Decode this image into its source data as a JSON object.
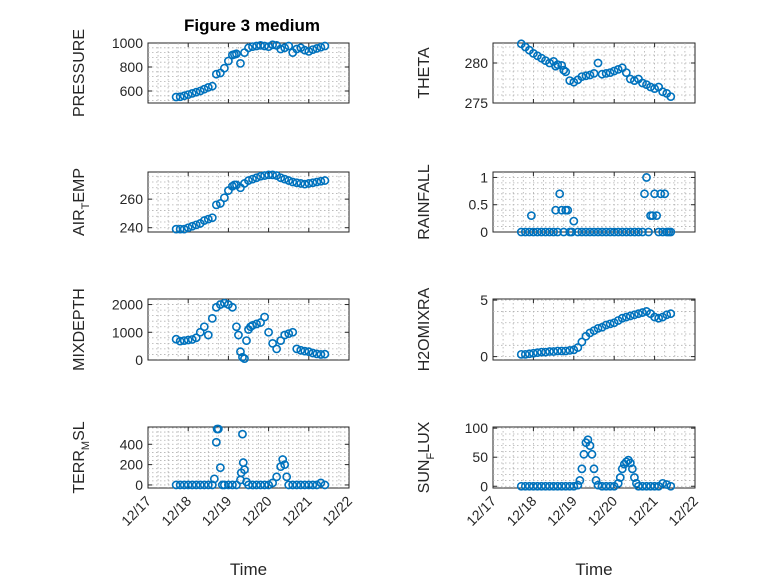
{
  "figure_title": "Figure 3 medium",
  "x_axis_label": "Time",
  "marker_color": "#0072BD",
  "time_ticks": [
    "12/17",
    "12/18",
    "12/19",
    "12/20",
    "12/21",
    "12/22"
  ],
  "chart_data": [
    {
      "type": "scatter",
      "ylabel": "PRESSURE",
      "ylim": [
        500,
        1000
      ],
      "yticks": [
        600,
        800,
        1000
      ],
      "xlim": [
        17,
        22
      ],
      "grid": true,
      "x": [
        17.7,
        17.8,
        17.9,
        18.0,
        18.1,
        18.2,
        18.3,
        18.4,
        18.5,
        18.6,
        18.7,
        18.8,
        18.9,
        19.0,
        19.1,
        19.15,
        19.2,
        19.3,
        19.4,
        19.5,
        19.6,
        19.7,
        19.8,
        19.9,
        20.0,
        20.1,
        20.2,
        20.3,
        20.4,
        20.5,
        20.6,
        20.7,
        20.8,
        20.9,
        21.0,
        21.1,
        21.2,
        21.3,
        21.4
      ],
      "y": [
        550,
        552,
        560,
        570,
        580,
        590,
        600,
        615,
        630,
        640,
        740,
        750,
        790,
        850,
        900,
        905,
        910,
        830,
        920,
        960,
        970,
        975,
        980,
        975,
        970,
        985,
        980,
        950,
        960,
        975,
        920,
        950,
        960,
        940,
        930,
        945,
        955,
        965,
        975
      ]
    },
    {
      "type": "scatter",
      "ylabel": "THETA",
      "ylim": [
        275,
        282.5
      ],
      "yticks": [
        275,
        280
      ],
      "xlim": [
        17,
        22
      ],
      "grid": true,
      "x": [
        17.7,
        17.8,
        17.9,
        18.0,
        18.1,
        18.2,
        18.3,
        18.4,
        18.5,
        18.55,
        18.6,
        18.7,
        18.75,
        18.8,
        18.9,
        19.0,
        19.1,
        19.2,
        19.3,
        19.4,
        19.5,
        19.6,
        19.7,
        19.8,
        19.9,
        20.0,
        20.1,
        20.2,
        20.3,
        20.4,
        20.5,
        20.6,
        20.7,
        20.8,
        20.9,
        21.0,
        21.1,
        21.2,
        21.3,
        21.4
      ],
      "y": [
        282.4,
        282,
        281.6,
        281.2,
        280.9,
        280.6,
        280.3,
        280,
        280.2,
        279.6,
        279.8,
        279.7,
        279.1,
        278.9,
        277.8,
        277.6,
        277.9,
        278.3,
        278.4,
        278.5,
        278.7,
        280.0,
        278.6,
        278.7,
        278.8,
        279.0,
        279.2,
        279.4,
        278.8,
        278.0,
        277.8,
        278.0,
        277.5,
        277.3,
        277.0,
        276.8,
        277.0,
        276.4,
        276.2,
        275.8
      ]
    },
    {
      "type": "scatter",
      "ylabel": "AIR_TEMP",
      "ylim": [
        237,
        279
      ],
      "yticks": [
        240,
        260
      ],
      "xlim": [
        17,
        22
      ],
      "grid": true,
      "x": [
        17.7,
        17.8,
        17.9,
        18.0,
        18.1,
        18.2,
        18.3,
        18.4,
        18.5,
        18.6,
        18.7,
        18.8,
        18.9,
        19.0,
        19.1,
        19.15,
        19.2,
        19.3,
        19.4,
        19.5,
        19.6,
        19.7,
        19.8,
        19.9,
        20.0,
        20.1,
        20.2,
        20.3,
        20.4,
        20.5,
        20.6,
        20.7,
        20.8,
        20.9,
        21.0,
        21.1,
        21.2,
        21.3,
        21.4
      ],
      "y": [
        239,
        239,
        239,
        240,
        241,
        242,
        243,
        245,
        246,
        247,
        256,
        257,
        261,
        266,
        269,
        270,
        270,
        268,
        271,
        273,
        274,
        275,
        276,
        276.5,
        277,
        277,
        276.5,
        275,
        274,
        273,
        272,
        271.5,
        271,
        270.5,
        271,
        271.5,
        272,
        272.5,
        273
      ]
    },
    {
      "type": "scatter",
      "ylabel": "RAINFALL",
      "ylim": [
        0,
        1.1
      ],
      "yticks": [
        0,
        0.5,
        1
      ],
      "xlim": [
        17,
        22
      ],
      "grid": true,
      "x": [
        17.7,
        17.8,
        17.9,
        17.95,
        18.0,
        18.1,
        18.2,
        18.3,
        18.4,
        18.5,
        18.55,
        18.6,
        18.65,
        18.7,
        18.75,
        18.8,
        18.85,
        18.9,
        18.95,
        19.0,
        19.1,
        19.2,
        19.3,
        19.4,
        19.5,
        19.6,
        19.7,
        19.8,
        19.9,
        20.0,
        20.1,
        20.2,
        20.3,
        20.4,
        20.5,
        20.6,
        20.7,
        20.75,
        20.8,
        20.85,
        20.9,
        20.95,
        21.0,
        21.05,
        21.1,
        21.15,
        21.2,
        21.25,
        21.3,
        21.35,
        21.4
      ],
      "y": [
        0,
        0,
        0,
        0.3,
        0,
        0,
        0,
        0,
        0,
        0,
        0.4,
        0,
        0.7,
        0.4,
        0,
        0.4,
        0.4,
        0,
        0,
        0.2,
        0,
        0,
        0,
        0,
        0,
        0,
        0,
        0,
        0,
        0,
        0,
        0,
        0,
        0,
        0,
        0,
        0,
        0.7,
        1.0,
        0,
        0.3,
        0.3,
        0.7,
        0.3,
        0,
        0.7,
        0,
        0.7,
        0,
        0,
        0
      ]
    },
    {
      "type": "scatter",
      "ylabel": "MIXDEPTH",
      "ylim": [
        0,
        2200
      ],
      "yticks": [
        0,
        1000,
        2000
      ],
      "xlim": [
        17,
        22
      ],
      "grid": true,
      "x": [
        17.7,
        17.8,
        17.9,
        18.0,
        18.1,
        18.2,
        18.3,
        18.4,
        18.5,
        18.6,
        18.7,
        18.8,
        18.9,
        19.0,
        19.1,
        19.2,
        19.25,
        19.3,
        19.35,
        19.4,
        19.45,
        19.5,
        19.55,
        19.6,
        19.7,
        19.8,
        19.9,
        20.0,
        20.1,
        20.2,
        20.3,
        20.4,
        20.5,
        20.6,
        20.7,
        20.8,
        20.9,
        21.0,
        21.1,
        21.2,
        21.3,
        21.4
      ],
      "y": [
        750,
        680,
        700,
        720,
        740,
        800,
        1000,
        1200,
        900,
        1500,
        1900,
        2000,
        2050,
        2000,
        1900,
        1200,
        900,
        300,
        100,
        50,
        700,
        1100,
        1200,
        1250,
        1300,
        1350,
        1550,
        1000,
        600,
        400,
        700,
        900,
        950,
        1000,
        400,
        350,
        320,
        300,
        250,
        220,
        200,
        210
      ]
    },
    {
      "type": "scatter",
      "ylabel": "H2OMIXRA",
      "ylim": [
        -0.3,
        5.1
      ],
      "yticks": [
        0,
        5
      ],
      "xlim": [
        17,
        22
      ],
      "grid": true,
      "x": [
        17.7,
        17.8,
        17.9,
        18.0,
        18.1,
        18.2,
        18.3,
        18.4,
        18.5,
        18.6,
        18.7,
        18.8,
        18.9,
        19.0,
        19.1,
        19.2,
        19.3,
        19.4,
        19.5,
        19.6,
        19.7,
        19.8,
        19.9,
        20.0,
        20.1,
        20.2,
        20.3,
        20.4,
        20.5,
        20.6,
        20.7,
        20.8,
        20.9,
        21.0,
        21.1,
        21.2,
        21.3,
        21.4
      ],
      "y": [
        0.2,
        0.2,
        0.25,
        0.3,
        0.35,
        0.4,
        0.4,
        0.45,
        0.45,
        0.5,
        0.5,
        0.5,
        0.55,
        0.6,
        0.8,
        1.3,
        1.8,
        2.1,
        2.3,
        2.5,
        2.6,
        2.8,
        2.9,
        3.0,
        3.2,
        3.4,
        3.5,
        3.6,
        3.7,
        3.8,
        3.9,
        4.0,
        3.8,
        3.5,
        3.4,
        3.5,
        3.7,
        3.8
      ]
    },
    {
      "type": "scatter",
      "ylabel": "TERR_MSL",
      "ylim": [
        -30,
        570
      ],
      "yticks": [
        0,
        200,
        400
      ],
      "xlim": [
        17,
        22
      ],
      "grid": true,
      "x": [
        17.7,
        17.8,
        17.9,
        18.0,
        18.1,
        18.2,
        18.3,
        18.4,
        18.5,
        18.6,
        18.65,
        18.7,
        18.72,
        18.75,
        18.8,
        18.85,
        18.9,
        19.0,
        19.1,
        19.2,
        19.3,
        19.32,
        19.35,
        19.37,
        19.4,
        19.45,
        19.5,
        19.6,
        19.7,
        19.8,
        19.9,
        20.0,
        20.1,
        20.2,
        20.3,
        20.35,
        20.4,
        20.45,
        20.5,
        20.6,
        20.7,
        20.8,
        20.9,
        21.0,
        21.1,
        21.2,
        21.3,
        21.4
      ],
      "y": [
        0,
        0,
        0,
        0,
        0,
        0,
        0,
        0,
        0,
        0,
        60,
        420,
        550,
        550,
        170,
        0,
        0,
        0,
        0,
        0,
        50,
        120,
        500,
        220,
        150,
        30,
        0,
        0,
        0,
        0,
        0,
        0,
        20,
        80,
        180,
        250,
        200,
        80,
        0,
        0,
        0,
        0,
        0,
        0,
        0,
        0,
        20,
        0
      ]
    },
    {
      "type": "scatter",
      "ylabel": "SUN_FLUX",
      "ylim": [
        -3,
        102
      ],
      "yticks": [
        0,
        50,
        100
      ],
      "xlim": [
        17,
        22
      ],
      "grid": true,
      "x": [
        17.7,
        17.8,
        17.9,
        18.0,
        18.1,
        18.2,
        18.3,
        18.4,
        18.5,
        18.6,
        18.7,
        18.8,
        18.9,
        19.0,
        19.1,
        19.15,
        19.2,
        19.25,
        19.3,
        19.35,
        19.4,
        19.45,
        19.5,
        19.55,
        19.6,
        19.7,
        19.8,
        19.9,
        20.0,
        20.1,
        20.15,
        20.2,
        20.25,
        20.3,
        20.35,
        20.4,
        20.45,
        20.5,
        20.55,
        20.6,
        20.7,
        20.8,
        20.9,
        21.0,
        21.1,
        21.2,
        21.3,
        21.4
      ],
      "y": [
        0,
        0,
        0,
        0,
        0,
        0,
        0,
        0,
        0,
        0,
        0,
        0,
        0,
        0,
        2,
        10,
        30,
        55,
        75,
        80,
        70,
        55,
        30,
        10,
        2,
        0,
        0,
        0,
        0,
        5,
        15,
        30,
        38,
        42,
        45,
        40,
        30,
        15,
        5,
        0,
        0,
        0,
        0,
        0,
        0,
        5,
        3,
        0
      ]
    }
  ]
}
